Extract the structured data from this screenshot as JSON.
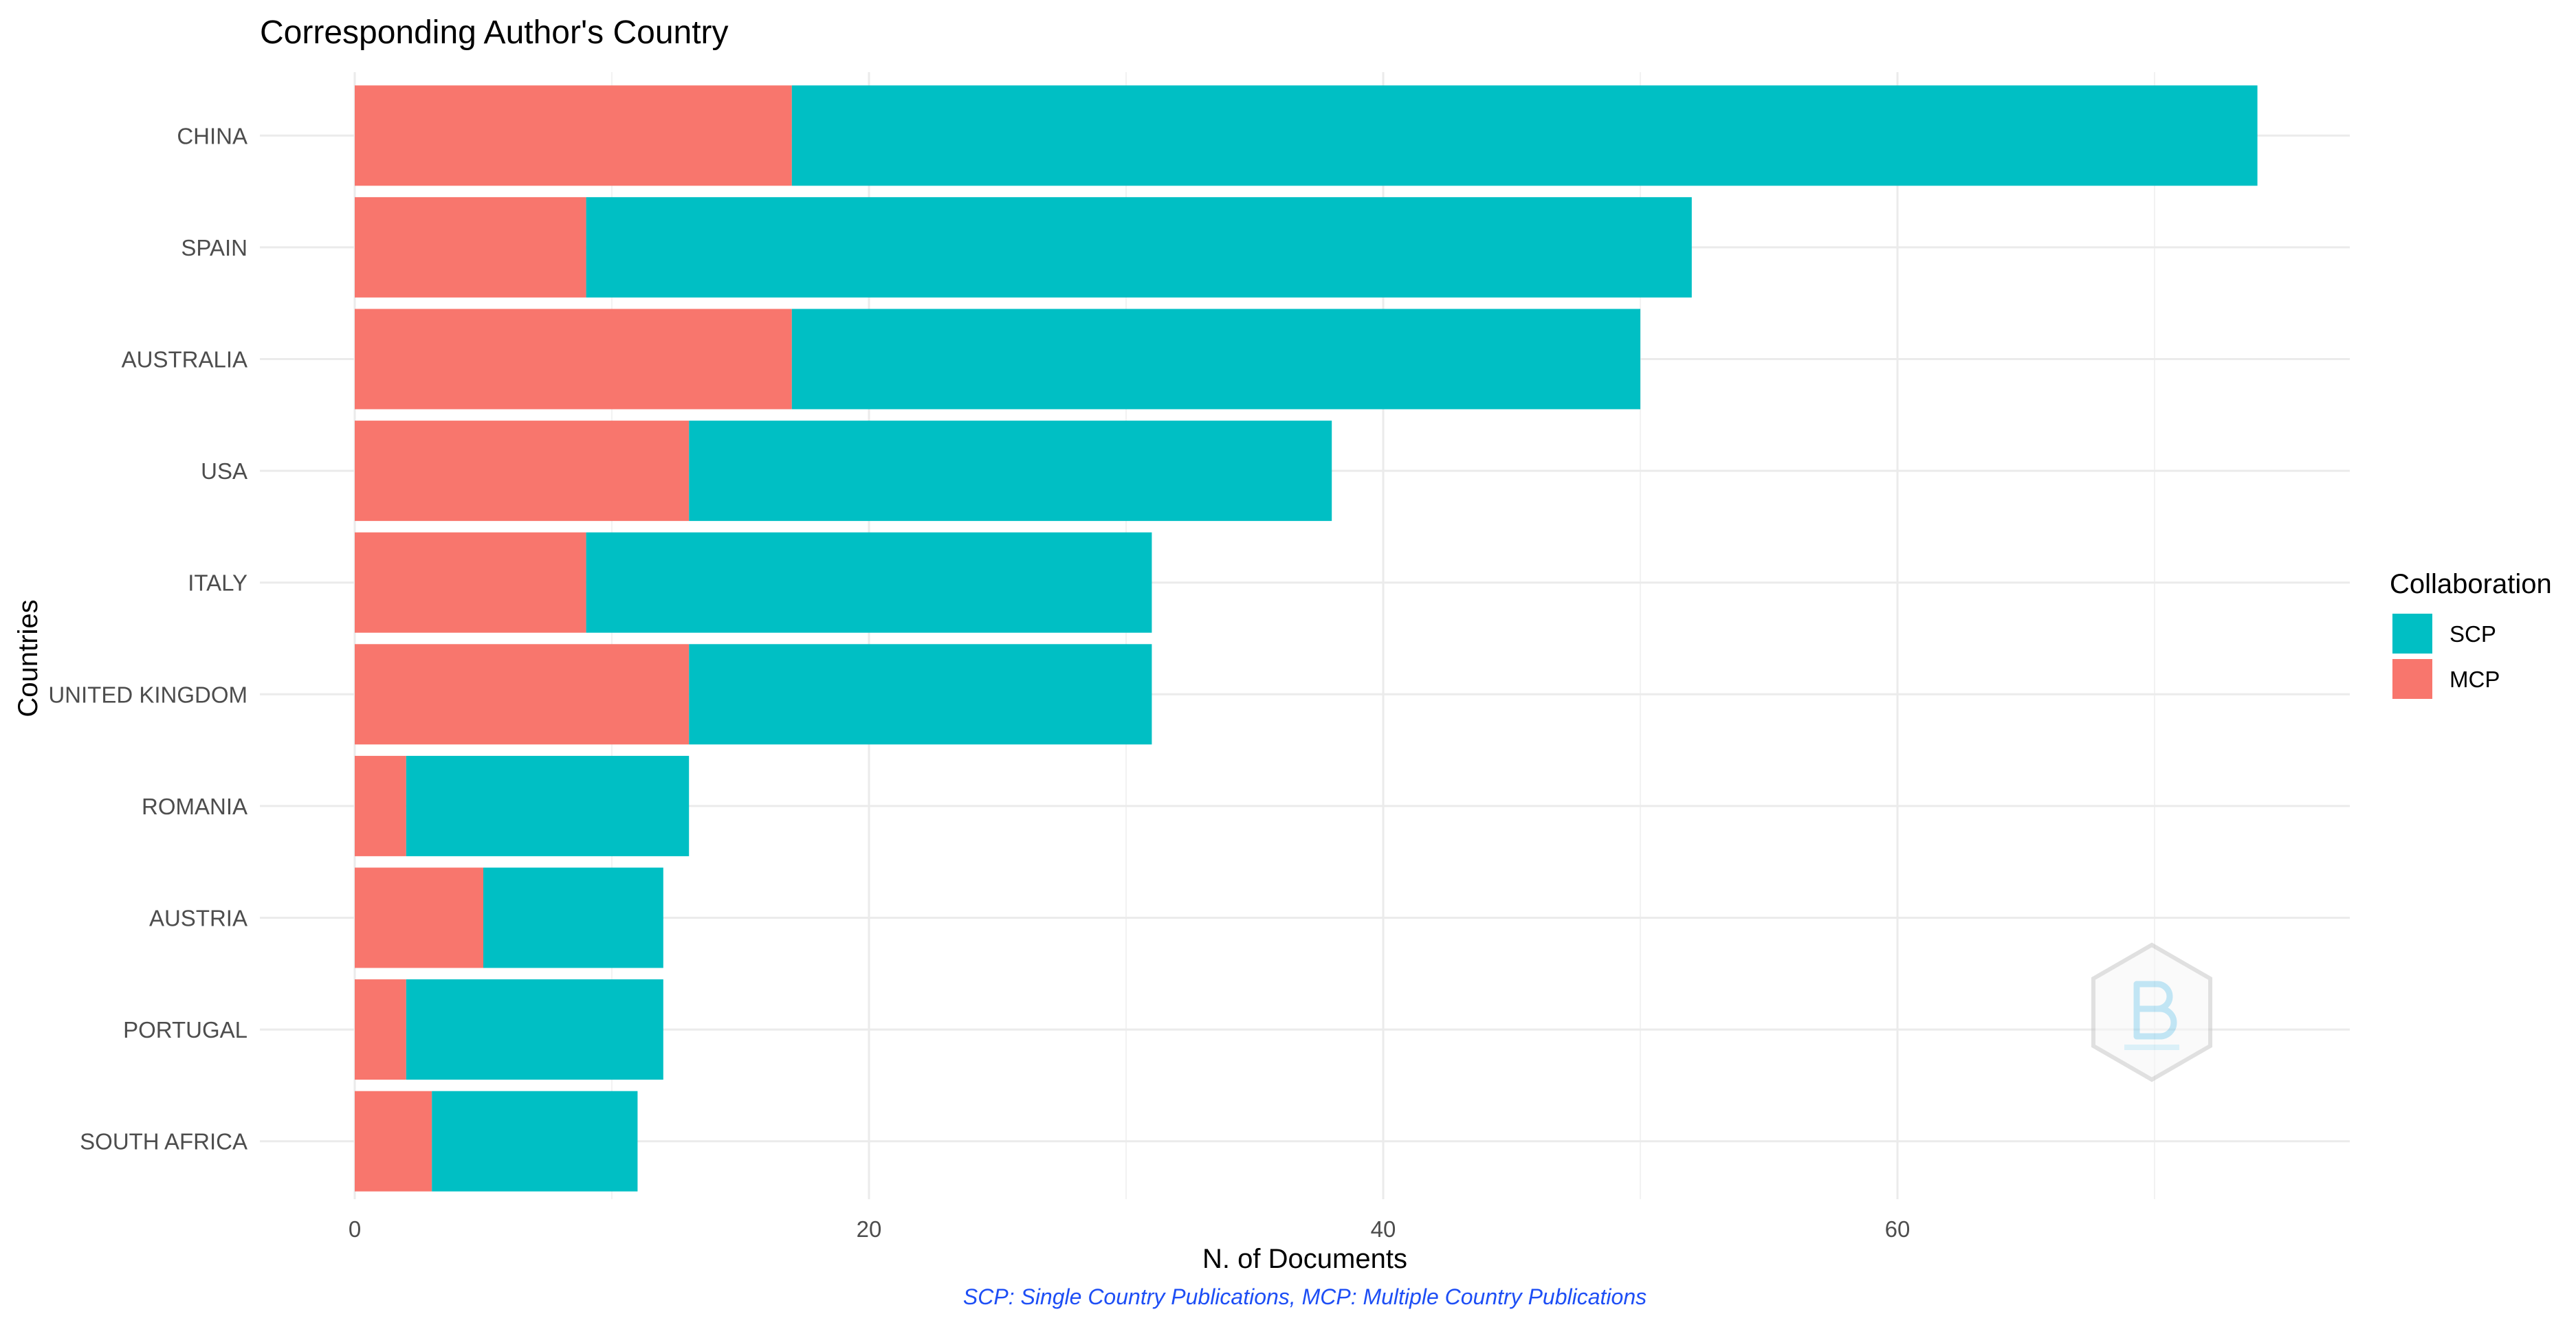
{
  "chart_data": {
    "type": "bar",
    "orientation": "horizontal",
    "stacked": true,
    "title": "Corresponding Author's Country",
    "xlabel": "N. of Documents",
    "ylabel": "Countries",
    "caption": "SCP: Single Country Publications, MCP: Multiple Country Publications",
    "categories": [
      "CHINA",
      "SPAIN",
      "AUSTRALIA",
      "USA",
      "ITALY",
      "UNITED KINGDOM",
      "ROMANIA",
      "AUSTRIA",
      "PORTUGAL",
      "SOUTH AFRICA"
    ],
    "series": [
      {
        "name": "MCP",
        "color": "#F8766D",
        "values": [
          17,
          9,
          17,
          13,
          9,
          13,
          2,
          5,
          2,
          3
        ]
      },
      {
        "name": "SCP",
        "color": "#00BFC4",
        "values": [
          57,
          43,
          33,
          25,
          22,
          18,
          11,
          7,
          10,
          8
        ]
      }
    ],
    "xticks": [
      0,
      20,
      40,
      60
    ],
    "xlim": [
      -3.7,
      77.7
    ],
    "grid": true,
    "legend": {
      "title": "Collaboration",
      "position": "right",
      "entries": [
        {
          "label": "SCP",
          "color": "#00BFC4"
        },
        {
          "label": "MCP",
          "color": "#F8766D"
        }
      ]
    },
    "watermark": "hexagon-logo"
  }
}
